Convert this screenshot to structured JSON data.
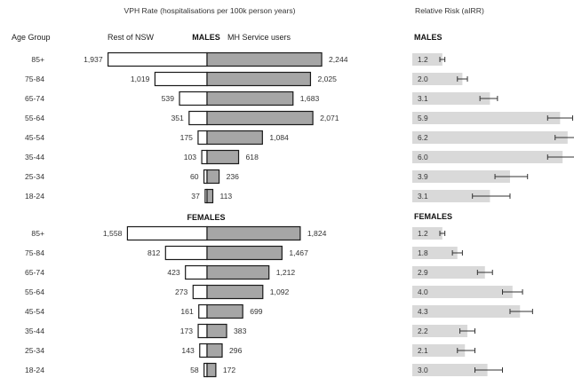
{
  "chart_data": [
    {
      "type": "bar",
      "subtype": "butterfly",
      "title": "VPH Rate (hospitalisations per 100k person years)",
      "ylabel": "Age Group",
      "left_label": "Rest of NSW",
      "right_label": "MH Service users",
      "categories": [
        "85+",
        "75-84",
        "65-74",
        "55-64",
        "45-54",
        "35-44",
        "25-34",
        "18-24"
      ],
      "panels": [
        {
          "name": "MALES",
          "series": [
            {
              "name": "Rest of NSW",
              "values": [
                1937,
                1019,
                539,
                351,
                175,
                103,
                60,
                37
              ],
              "labels": [
                "1,937",
                "1,019",
                "539",
                "351",
                "175",
                "103",
                "60",
                "37"
              ]
            },
            {
              "name": "MH Service users",
              "values": [
                2244,
                2025,
                1683,
                2071,
                1084,
                618,
                236,
                113
              ],
              "labels": [
                "2,244",
                "2,025",
                "1,683",
                "2,071",
                "1,084",
                "618",
                "236",
                "113"
              ]
            }
          ]
        },
        {
          "name": "FEMALES",
          "series": [
            {
              "name": "Rest of NSW",
              "values": [
                1558,
                812,
                423,
                273,
                161,
                173,
                143,
                58
              ],
              "labels": [
                "1,558",
                "812",
                "423",
                "273",
                "161",
                "173",
                "143",
                "58"
              ]
            },
            {
              "name": "MH Service users",
              "values": [
                1824,
                1467,
                1212,
                1092,
                699,
                383,
                296,
                172
              ],
              "labels": [
                "1,824",
                "1,467",
                "1,212",
                "1,092",
                "699",
                "383",
                "296",
                "172"
              ]
            }
          ]
        }
      ],
      "colors": {
        "left_fill": "#ffffff",
        "right_fill": "#a6a6a6",
        "stroke": "#1a1a1a"
      }
    },
    {
      "type": "bar",
      "subtype": "error-bar",
      "title": "Relative Risk (aIRR)",
      "categories": [
        "85+",
        "75-84",
        "65-74",
        "55-64",
        "45-54",
        "35-44",
        "25-34",
        "18-24"
      ],
      "panels": [
        {
          "name": "MALES",
          "values": [
            1.2,
            2.0,
            3.1,
            5.9,
            6.2,
            6.0,
            3.9,
            3.1
          ],
          "labels": [
            "1.2",
            "2.0",
            "3.1",
            "5.9",
            "6.2",
            "6.0",
            "3.9",
            "3.1"
          ],
          "ci_low": [
            1.1,
            1.8,
            2.7,
            5.4,
            5.7,
            5.4,
            3.3,
            2.4
          ],
          "ci_high": [
            1.3,
            2.2,
            3.4,
            6.4,
            6.7,
            6.7,
            4.6,
            3.9
          ]
        },
        {
          "name": "FEMALES",
          "values": [
            1.2,
            1.8,
            2.9,
            4.0,
            4.3,
            2.2,
            2.1,
            3.0
          ],
          "labels": [
            "1.2",
            "1.8",
            "2.9",
            "4.0",
            "4.3",
            "2.2",
            "2.1",
            "3.0"
          ],
          "ci_low": [
            1.1,
            1.6,
            2.6,
            3.6,
            3.9,
            1.9,
            1.8,
            2.5
          ],
          "ci_high": [
            1.3,
            2.0,
            3.2,
            4.4,
            4.8,
            2.5,
            2.5,
            3.6
          ]
        }
      ],
      "colors": {
        "bar_fill": "#d9d9d9",
        "error_stroke": "#333333"
      }
    }
  ]
}
